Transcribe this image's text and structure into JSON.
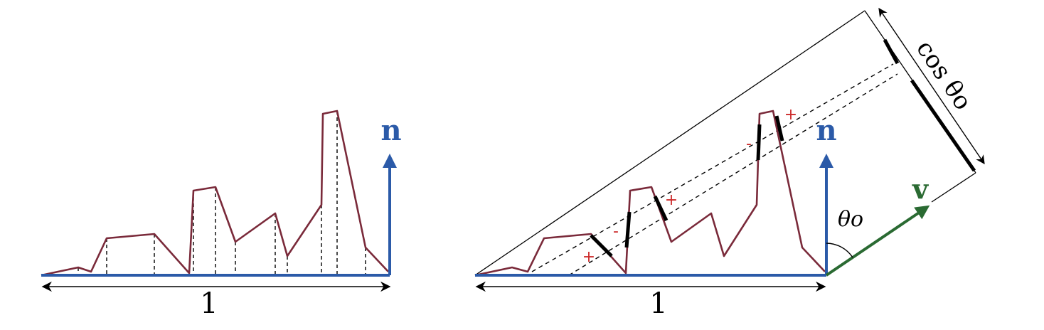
{
  "colors": {
    "surface": "#2b5aa8",
    "profile": "#7a2a3a",
    "view": "#2a6a32",
    "sign": "#cc2a2a",
    "ink": "#000000"
  },
  "left_panel": {
    "normal_label": "n",
    "width_label": "1"
  },
  "right_panel": {
    "normal_label": "n",
    "view_label": "v",
    "angle_label": "θo",
    "projection_label": "cos θo",
    "width_label": "1",
    "signs": [
      "+",
      "-",
      "+",
      "-",
      "+"
    ]
  }
}
